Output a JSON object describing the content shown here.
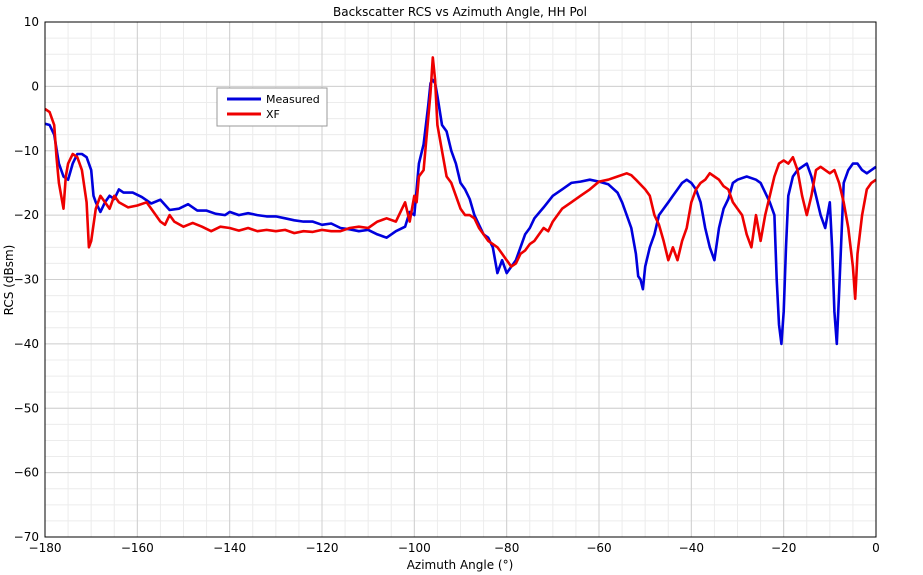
{
  "chart_data": {
    "type": "line",
    "title": "Backscatter RCS vs Azimuth Angle, HH Pol",
    "xlabel": "Azimuth Angle (°)",
    "ylabel": "RCS (dBsm)",
    "xlim": [
      -180,
      0
    ],
    "ylim": [
      -70,
      10
    ],
    "xticks": [
      -180,
      -160,
      -140,
      -120,
      -100,
      -80,
      -60,
      -40,
      -20,
      0
    ],
    "yticks": [
      10,
      0,
      -10,
      -20,
      -30,
      -40,
      -50,
      -60,
      -70
    ],
    "xtick_labels": [
      "−180",
      "−160",
      "−140",
      "−120",
      "−100",
      "−80",
      "−60",
      "−40",
      "−20",
      "0"
    ],
    "ytick_labels": [
      "10",
      "0",
      "−10",
      "−20",
      "−30",
      "−40",
      "−50",
      "−60",
      "−70"
    ],
    "grid": true,
    "legend_position": "top-left",
    "series": [
      {
        "name": "Measured",
        "color": "#0000dd",
        "points": [
          [
            -180,
            -5.8
          ],
          [
            -179,
            -6
          ],
          [
            -178,
            -7.5
          ],
          [
            -177,
            -12
          ],
          [
            -176,
            -14
          ],
          [
            -175,
            -14.5
          ],
          [
            -174,
            -12
          ],
          [
            -173,
            -10.5
          ],
          [
            -172,
            -10.5
          ],
          [
            -171,
            -11
          ],
          [
            -170,
            -13
          ],
          [
            -169.5,
            -17
          ],
          [
            -169,
            -18
          ],
          [
            -168,
            -19.5
          ],
          [
            -167,
            -18
          ],
          [
            -166,
            -17
          ],
          [
            -165,
            -17.5
          ],
          [
            -164,
            -16
          ],
          [
            -163,
            -16.5
          ],
          [
            -161,
            -16.5
          ],
          [
            -159,
            -17.2
          ],
          [
            -157,
            -18.2
          ],
          [
            -155,
            -17.6
          ],
          [
            -153,
            -19.2
          ],
          [
            -151,
            -19
          ],
          [
            -149,
            -18.3
          ],
          [
            -147,
            -19.3
          ],
          [
            -145,
            -19.3
          ],
          [
            -143,
            -19.8
          ],
          [
            -141,
            -20
          ],
          [
            -140,
            -19.5
          ],
          [
            -138,
            -20
          ],
          [
            -136,
            -19.7
          ],
          [
            -134,
            -20
          ],
          [
            -132,
            -20.2
          ],
          [
            -130,
            -20.2
          ],
          [
            -128,
            -20.5
          ],
          [
            -126,
            -20.8
          ],
          [
            -124,
            -21
          ],
          [
            -122,
            -21
          ],
          [
            -120,
            -21.5
          ],
          [
            -118,
            -21.3
          ],
          [
            -116,
            -22
          ],
          [
            -114,
            -22.2
          ],
          [
            -112,
            -22.5
          ],
          [
            -110,
            -22.3
          ],
          [
            -108,
            -23
          ],
          [
            -106,
            -23.5
          ],
          [
            -104,
            -22.5
          ],
          [
            -102,
            -21.8
          ],
          [
            -101,
            -19.5
          ],
          [
            -100,
            -20
          ],
          [
            -99.5,
            -16
          ],
          [
            -99,
            -12
          ],
          [
            -98,
            -9
          ],
          [
            -97,
            -3
          ],
          [
            -96.5,
            0.5
          ],
          [
            -96,
            1
          ],
          [
            -95.5,
            0.5
          ],
          [
            -95,
            -1.5
          ],
          [
            -94,
            -6
          ],
          [
            -93,
            -7
          ],
          [
            -92,
            -10
          ],
          [
            -91,
            -12
          ],
          [
            -90,
            -15
          ],
          [
            -89,
            -16
          ],
          [
            -88,
            -17.5
          ],
          [
            -87,
            -20
          ],
          [
            -86,
            -21.5
          ],
          [
            -85,
            -23
          ],
          [
            -84,
            -23.5
          ],
          [
            -83,
            -25
          ],
          [
            -82,
            -29
          ],
          [
            -81,
            -27
          ],
          [
            -80,
            -29
          ],
          [
            -79,
            -28
          ],
          [
            -78,
            -27
          ],
          [
            -77,
            -25
          ],
          [
            -76,
            -23
          ],
          [
            -75,
            -22
          ],
          [
            -74,
            -20.5
          ],
          [
            -72,
            -18.8
          ],
          [
            -70,
            -17
          ],
          [
            -68,
            -16
          ],
          [
            -66,
            -15
          ],
          [
            -64,
            -14.8
          ],
          [
            -62,
            -14.5
          ],
          [
            -60,
            -14.8
          ],
          [
            -58,
            -15.2
          ],
          [
            -56,
            -16.5
          ],
          [
            -55,
            -18
          ],
          [
            -54,
            -20
          ],
          [
            -53,
            -22
          ],
          [
            -52,
            -26
          ],
          [
            -51.5,
            -29.5
          ],
          [
            -51,
            -30
          ],
          [
            -50.5,
            -31.5
          ],
          [
            -50,
            -28
          ],
          [
            -49,
            -25
          ],
          [
            -48,
            -23
          ],
          [
            -47,
            -20
          ],
          [
            -46,
            -19
          ],
          [
            -45,
            -18
          ],
          [
            -44,
            -17
          ],
          [
            -43,
            -16
          ],
          [
            -42,
            -15
          ],
          [
            -41,
            -14.5
          ],
          [
            -40,
            -15
          ],
          [
            -39,
            -16
          ],
          [
            -38,
            -18
          ],
          [
            -37,
            -22
          ],
          [
            -36,
            -25
          ],
          [
            -35,
            -27
          ],
          [
            -34,
            -22
          ],
          [
            -33,
            -19
          ],
          [
            -32,
            -17.5
          ],
          [
            -31,
            -15
          ],
          [
            -30,
            -14.5
          ],
          [
            -28,
            -14
          ],
          [
            -26,
            -14.5
          ],
          [
            -25,
            -15
          ],
          [
            -24,
            -16.5
          ],
          [
            -23,
            -18
          ],
          [
            -22,
            -20
          ],
          [
            -21.5,
            -30
          ],
          [
            -21,
            -37
          ],
          [
            -20.5,
            -40
          ],
          [
            -20,
            -35
          ],
          [
            -19.5,
            -25
          ],
          [
            -19,
            -17
          ],
          [
            -18,
            -14
          ],
          [
            -17,
            -13
          ],
          [
            -16,
            -12.5
          ],
          [
            -15,
            -12
          ],
          [
            -14,
            -14
          ],
          [
            -13,
            -17
          ],
          [
            -12,
            -20
          ],
          [
            -11,
            -22
          ],
          [
            -10,
            -18
          ],
          [
            -9.5,
            -25
          ],
          [
            -9,
            -35
          ],
          [
            -8.5,
            -40
          ],
          [
            -8,
            -32
          ],
          [
            -7,
            -15
          ],
          [
            -6,
            -13
          ],
          [
            -5,
            -12
          ],
          [
            -4,
            -12
          ],
          [
            -3,
            -13
          ],
          [
            -2,
            -13.5
          ],
          [
            -1,
            -13
          ],
          [
            0,
            -12.5
          ]
        ]
      },
      {
        "name": "XF",
        "color": "#ee0000",
        "points": [
          [
            -180,
            -3.5
          ],
          [
            -179,
            -4
          ],
          [
            -178,
            -6
          ],
          [
            -177.5,
            -11
          ],
          [
            -177,
            -15
          ],
          [
            -176,
            -19
          ],
          [
            -175.5,
            -14
          ],
          [
            -175,
            -12
          ],
          [
            -174,
            -10.5
          ],
          [
            -173,
            -11
          ],
          [
            -172,
            -13
          ],
          [
            -171,
            -18
          ],
          [
            -170.5,
            -25
          ],
          [
            -170,
            -24
          ],
          [
            -169.5,
            -21.5
          ],
          [
            -169,
            -19
          ],
          [
            -168,
            -17
          ],
          [
            -167,
            -18
          ],
          [
            -166,
            -19
          ],
          [
            -165,
            -17
          ],
          [
            -164,
            -18
          ],
          [
            -162,
            -18.8
          ],
          [
            -160,
            -18.5
          ],
          [
            -158,
            -18
          ],
          [
            -156,
            -20
          ],
          [
            -155,
            -21
          ],
          [
            -154,
            -21.5
          ],
          [
            -153,
            -20
          ],
          [
            -152,
            -21
          ],
          [
            -150,
            -21.8
          ],
          [
            -148,
            -21.2
          ],
          [
            -146,
            -21.8
          ],
          [
            -144,
            -22.5
          ],
          [
            -142,
            -21.8
          ],
          [
            -140,
            -22
          ],
          [
            -138,
            -22.4
          ],
          [
            -136,
            -22
          ],
          [
            -134,
            -22.5
          ],
          [
            -132,
            -22.3
          ],
          [
            -130,
            -22.5
          ],
          [
            -128,
            -22.3
          ],
          [
            -126,
            -22.8
          ],
          [
            -124,
            -22.5
          ],
          [
            -122,
            -22.6
          ],
          [
            -120,
            -22.3
          ],
          [
            -118,
            -22.5
          ],
          [
            -116,
            -22.5
          ],
          [
            -114,
            -22
          ],
          [
            -112,
            -21.8
          ],
          [
            -110,
            -22
          ],
          [
            -108,
            -21
          ],
          [
            -106,
            -20.5
          ],
          [
            -104,
            -21
          ],
          [
            -103,
            -19.5
          ],
          [
            -102,
            -18
          ],
          [
            -101,
            -21
          ],
          [
            -100,
            -17
          ],
          [
            -99.5,
            -18
          ],
          [
            -99,
            -14
          ],
          [
            -98,
            -13
          ],
          [
            -97.5,
            -9
          ],
          [
            -97,
            -5
          ],
          [
            -96.5,
            -1
          ],
          [
            -96,
            4.5
          ],
          [
            -95.5,
            1
          ],
          [
            -95,
            -6
          ],
          [
            -94,
            -10
          ],
          [
            -93,
            -14
          ],
          [
            -92,
            -15
          ],
          [
            -91,
            -17
          ],
          [
            -90,
            -19
          ],
          [
            -89,
            -20
          ],
          [
            -88,
            -20
          ],
          [
            -87,
            -20.5
          ],
          [
            -86,
            -22
          ],
          [
            -85,
            -23
          ],
          [
            -84,
            -24
          ],
          [
            -83,
            -24.5
          ],
          [
            -82,
            -25
          ],
          [
            -81,
            -26
          ],
          [
            -80,
            -27
          ],
          [
            -79,
            -28
          ],
          [
            -78,
            -27.5
          ],
          [
            -77,
            -26
          ],
          [
            -76,
            -25.5
          ],
          [
            -75,
            -24.5
          ],
          [
            -74,
            -24
          ],
          [
            -73,
            -23
          ],
          [
            -72,
            -22
          ],
          [
            -71,
            -22.5
          ],
          [
            -70,
            -21
          ],
          [
            -68,
            -19
          ],
          [
            -66,
            -18
          ],
          [
            -64,
            -17
          ],
          [
            -62,
            -16
          ],
          [
            -60,
            -14.8
          ],
          [
            -58,
            -14.5
          ],
          [
            -56,
            -14
          ],
          [
            -54,
            -13.5
          ],
          [
            -53,
            -13.8
          ],
          [
            -52,
            -14.5
          ],
          [
            -50,
            -16
          ],
          [
            -49,
            -17
          ],
          [
            -48,
            -20
          ],
          [
            -47,
            -21.5
          ],
          [
            -46,
            -24
          ],
          [
            -45,
            -27
          ],
          [
            -44,
            -25
          ],
          [
            -43,
            -27
          ],
          [
            -42,
            -24
          ],
          [
            -41,
            -22
          ],
          [
            -40,
            -18
          ],
          [
            -39,
            -16
          ],
          [
            -38,
            -15
          ],
          [
            -37,
            -14.5
          ],
          [
            -36,
            -13.5
          ],
          [
            -35,
            -14
          ],
          [
            -34,
            -14.5
          ],
          [
            -33,
            -15.5
          ],
          [
            -32,
            -16
          ],
          [
            -31,
            -18
          ],
          [
            -30,
            -19
          ],
          [
            -29,
            -20
          ],
          [
            -28,
            -23
          ],
          [
            -27,
            -25
          ],
          [
            -26,
            -20
          ],
          [
            -25,
            -24
          ],
          [
            -24,
            -20
          ],
          [
            -23,
            -17
          ],
          [
            -22,
            -14
          ],
          [
            -21,
            -12
          ],
          [
            -20,
            -11.5
          ],
          [
            -19,
            -12
          ],
          [
            -18,
            -11
          ],
          [
            -17,
            -13
          ],
          [
            -16,
            -17
          ],
          [
            -15,
            -20
          ],
          [
            -14,
            -17
          ],
          [
            -13,
            -13
          ],
          [
            -12,
            -12.5
          ],
          [
            -11,
            -13
          ],
          [
            -10,
            -13.5
          ],
          [
            -9,
            -13
          ],
          [
            -8,
            -15
          ],
          [
            -7,
            -18
          ],
          [
            -6,
            -22
          ],
          [
            -5,
            -28
          ],
          [
            -4.5,
            -33
          ],
          [
            -4,
            -26
          ],
          [
            -3,
            -20
          ],
          [
            -2,
            -16
          ],
          [
            -1,
            -15
          ],
          [
            0,
            -14.5
          ]
        ]
      }
    ]
  }
}
